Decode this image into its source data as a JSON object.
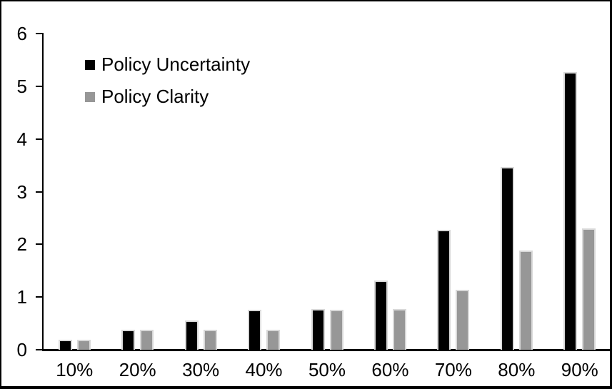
{
  "chart_data": {
    "type": "bar",
    "title": "",
    "xlabel": "",
    "ylabel": "",
    "categories": [
      "10%",
      "20%",
      "30%",
      "40%",
      "50%",
      "60%",
      "70%",
      "80%",
      "90%"
    ],
    "series": [
      {
        "name": "Policy Uncertainty",
        "color": "#000000",
        "values": [
          0.19,
          0.38,
          0.56,
          0.76,
          0.77,
          1.32,
          2.28,
          3.47,
          5.27
        ]
      },
      {
        "name": "Policy Clarity",
        "color": "#979797",
        "values": [
          0.19,
          0.38,
          0.38,
          0.38,
          0.76,
          0.77,
          1.14,
          1.88,
          2.3
        ]
      }
    ],
    "ylim": [
      0,
      6
    ],
    "yticks": [
      0,
      1,
      2,
      3,
      4,
      5,
      6
    ],
    "grid": false,
    "legend_position": "top-left-inside",
    "bar_outline_color": "#d9d9d9",
    "axis_color": "#000000",
    "background_color": "#ffffff"
  }
}
